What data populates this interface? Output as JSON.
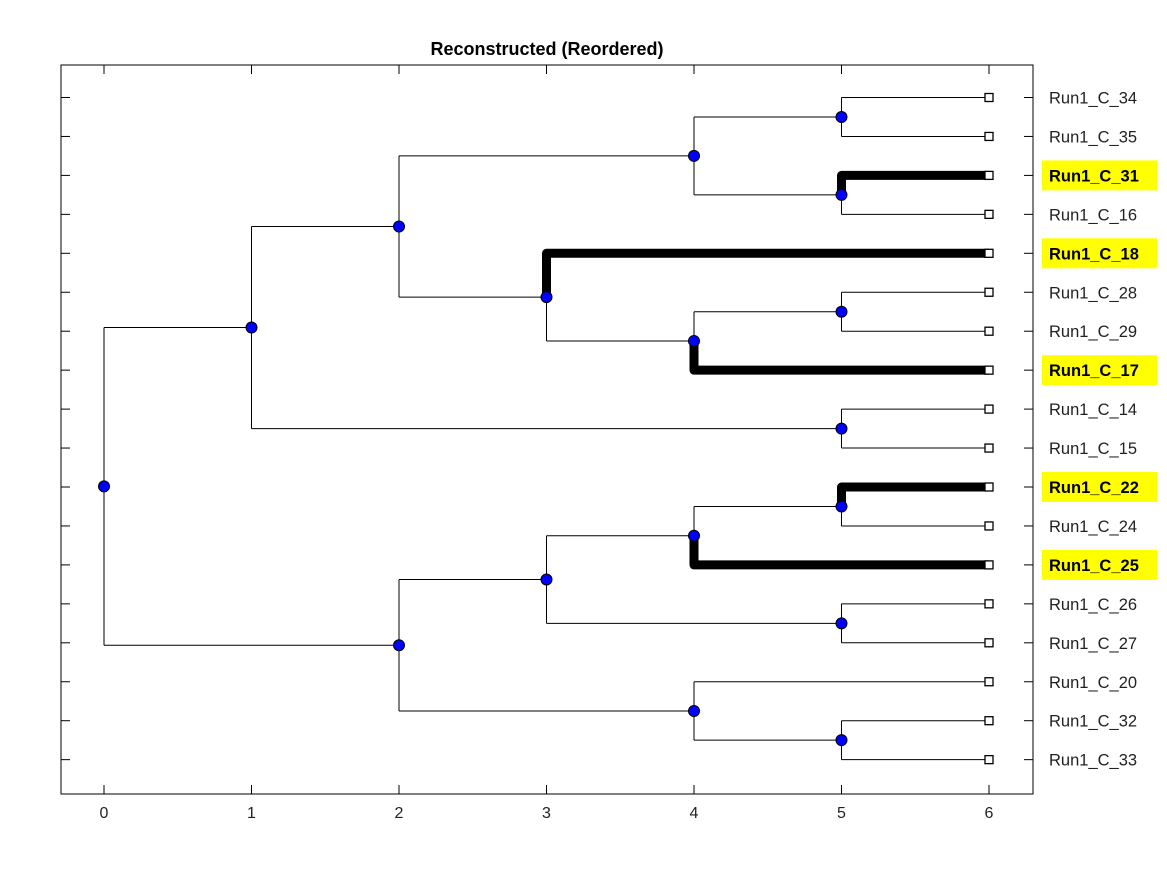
{
  "title": "Reconstructed (Reordered)",
  "colors": {
    "node": "#0000ff",
    "highlight_bg": "#ffff00",
    "edge": "#000000"
  },
  "x_ticks": [
    0,
    1,
    2,
    3,
    4,
    5,
    6
  ],
  "leaves": [
    {
      "label": "Run1_C_34",
      "highlight": false
    },
    {
      "label": "Run1_C_35",
      "highlight": false
    },
    {
      "label": "Run1_C_31",
      "highlight": true
    },
    {
      "label": "Run1_C_16",
      "highlight": false
    },
    {
      "label": "Run1_C_18",
      "highlight": true
    },
    {
      "label": "Run1_C_28",
      "highlight": false
    },
    {
      "label": "Run1_C_29",
      "highlight": false
    },
    {
      "label": "Run1_C_17",
      "highlight": true
    },
    {
      "label": "Run1_C_14",
      "highlight": false
    },
    {
      "label": "Run1_C_15",
      "highlight": false
    },
    {
      "label": "Run1_C_22",
      "highlight": true
    },
    {
      "label": "Run1_C_24",
      "highlight": false
    },
    {
      "label": "Run1_C_25",
      "highlight": true
    },
    {
      "label": "Run1_C_26",
      "highlight": false
    },
    {
      "label": "Run1_C_27",
      "highlight": false
    },
    {
      "label": "Run1_C_20",
      "highlight": false
    },
    {
      "label": "Run1_C_32",
      "highlight": false
    },
    {
      "label": "Run1_C_33",
      "highlight": false
    }
  ],
  "tree": {
    "depth": 0,
    "children": [
      {
        "depth": 1,
        "children": [
          {
            "depth": 2,
            "children": [
              {
                "depth": 4,
                "children": [
                  {
                    "depth": 5,
                    "children": [
                      {
                        "leaf": 0
                      },
                      {
                        "leaf": 1
                      }
                    ]
                  },
                  {
                    "depth": 5,
                    "children": [
                      {
                        "leaf": 2,
                        "highlight": true
                      },
                      {
                        "leaf": 3
                      }
                    ]
                  }
                ]
              },
              {
                "depth": 3,
                "children": [
                  {
                    "leaf": 4,
                    "highlight": true
                  },
                  {
                    "depth": 4,
                    "children": [
                      {
                        "depth": 5,
                        "children": [
                          {
                            "leaf": 5
                          },
                          {
                            "leaf": 6
                          }
                        ]
                      },
                      {
                        "leaf": 7,
                        "highlight": true
                      }
                    ]
                  }
                ]
              }
            ]
          },
          {
            "depth": 5,
            "children": [
              {
                "leaf": 8
              },
              {
                "leaf": 9
              }
            ]
          }
        ]
      },
      {
        "depth": 2,
        "children": [
          {
            "depth": 3,
            "children": [
              {
                "depth": 4,
                "children": [
                  {
                    "depth": 5,
                    "children": [
                      {
                        "leaf": 10,
                        "highlight": true
                      },
                      {
                        "leaf": 11
                      }
                    ]
                  },
                  {
                    "leaf": 12,
                    "highlight": true
                  }
                ]
              },
              {
                "depth": 5,
                "children": [
                  {
                    "leaf": 13
                  },
                  {
                    "leaf": 14
                  }
                ]
              }
            ]
          },
          {
            "depth": 4,
            "children": [
              {
                "leaf": 15
              },
              {
                "depth": 5,
                "children": [
                  {
                    "leaf": 16
                  },
                  {
                    "leaf": 17
                  }
                ]
              }
            ]
          }
        ]
      }
    ]
  }
}
